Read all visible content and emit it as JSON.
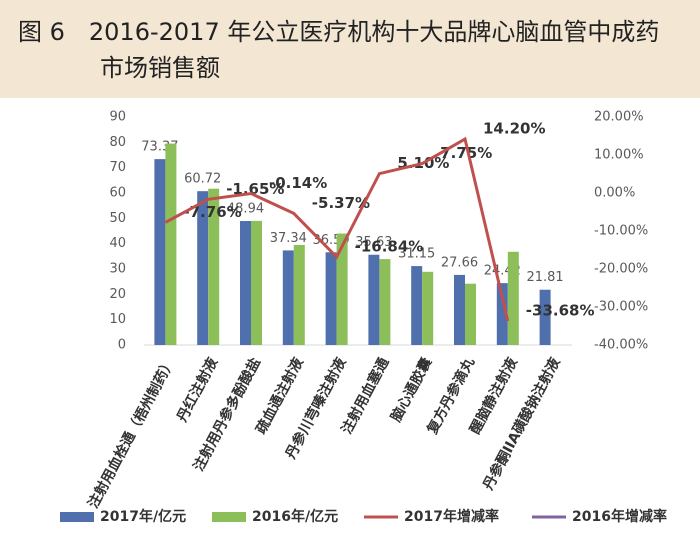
{
  "chart_data": {
    "type": "bar_line",
    "title": "图 6　2016-2017 年公立医疗机构十大品牌心脑血管中成药市场销售额",
    "categories": [
      "注射用血栓通（梧州制药）",
      "丹红注射液",
      "注射用丹参多酚酸盐",
      "疏血通注射液",
      "丹参川芎嗪注射液",
      "注射用血塞通",
      "脑心通胶囊",
      "复方丹参滴丸",
      "醒脑静注射液",
      "丹参酮IIA磺酸钠注射液"
    ],
    "series": [
      {
        "name": "2017年/亿元",
        "type": "bar",
        "color": "#4f6fad",
        "values": [
          73.37,
          60.72,
          48.94,
          37.34,
          36.59,
          35.63,
          31.15,
          27.66,
          24.42,
          21.81
        ]
      },
      {
        "name": "2016年/亿元",
        "type": "bar",
        "color": "#8cbf5a",
        "values": [
          79.5,
          61.7,
          49.0,
          39.5,
          44.0,
          33.9,
          28.9,
          24.2,
          36.8,
          null
        ]
      },
      {
        "name": "2017年增减率",
        "type": "line",
        "axis": "y2",
        "color": "#c0504d",
        "values": [
          -7.76,
          -1.65,
          -0.14,
          -5.37,
          -16.84,
          5.1,
          7.75,
          14.2,
          -33.68,
          null
        ],
        "value_labels": [
          "-7.76%",
          "-1.65%",
          "-0.14%",
          "-5.37%",
          "-16.84%",
          "5.10%",
          "7.75%",
          "14.20%",
          "-33.68%",
          null
        ]
      },
      {
        "name": "2016年增减率",
        "type": "line",
        "axis": "y2",
        "color": "#8064a2",
        "values": [
          null,
          null,
          null,
          null,
          null,
          null,
          null,
          null,
          null,
          null
        ]
      }
    ],
    "ylim": [
      0,
      90
    ],
    "yticks": [
      0,
      10,
      20,
      30,
      40,
      50,
      60,
      70,
      80,
      90
    ],
    "y2lim": [
      -40,
      20
    ],
    "y2ticks": [
      {
        "value": 20,
        "label": "20.00%"
      },
      {
        "value": 10,
        "label": "10.00%"
      },
      {
        "value": 0,
        "label": "0.00%"
      },
      {
        "value": -10,
        "label": "-10.00%"
      },
      {
        "value": -20,
        "label": "-20.00%"
      },
      {
        "value": -30,
        "label": "-30.00%"
      },
      {
        "value": -40,
        "label": "-40.00%"
      }
    ],
    "grid": false
  }
}
